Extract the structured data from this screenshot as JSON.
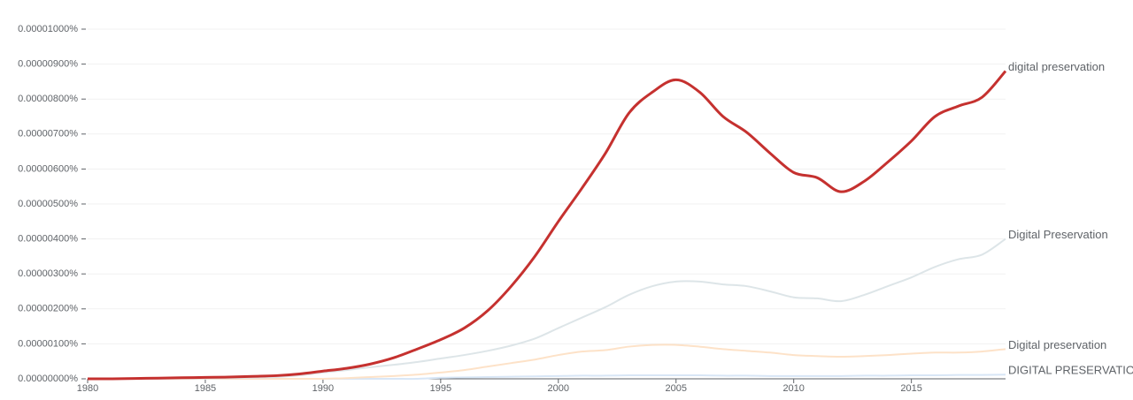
{
  "chart_data": {
    "type": "line",
    "x": [
      1980,
      1981,
      1982,
      1983,
      1984,
      1985,
      1986,
      1987,
      1988,
      1989,
      1990,
      1991,
      1992,
      1993,
      1994,
      1995,
      1996,
      1997,
      1998,
      1999,
      2000,
      2001,
      2002,
      2003,
      2004,
      2005,
      2006,
      2007,
      2008,
      2009,
      2010,
      2011,
      2012,
      2013,
      2014,
      2015,
      2016,
      2017,
      2018,
      2019
    ],
    "xlim": [
      1980,
      2019
    ],
    "xticks": [
      1980,
      1985,
      1990,
      1995,
      2000,
      2005,
      2010,
      2015
    ],
    "ylim": [
      0,
      1e-05
    ],
    "yticks": [
      {
        "value": 0,
        "label": "0.00000000%"
      },
      {
        "value": 1e-06,
        "label": "0.00000100%"
      },
      {
        "value": 2e-06,
        "label": "0.00000200%"
      },
      {
        "value": 3e-06,
        "label": "0.00000300%"
      },
      {
        "value": 4e-06,
        "label": "0.00000400%"
      },
      {
        "value": 5e-06,
        "label": "0.00000500%"
      },
      {
        "value": 6e-06,
        "label": "0.00000600%"
      },
      {
        "value": 7e-06,
        "label": "0.00000700%"
      },
      {
        "value": 8e-06,
        "label": "0.00000800%"
      },
      {
        "value": 9e-06,
        "label": "0.00000900%"
      },
      {
        "value": 1e-05,
        "label": "0.00001000%"
      }
    ],
    "grid": true,
    "series": [
      {
        "name": "digital preservation",
        "color": "#c5312f",
        "values": [
          0,
          0,
          1e-08,
          2e-08,
          3e-08,
          4e-08,
          5e-08,
          7e-08,
          9e-08,
          1.4e-07,
          2.2e-07,
          3e-07,
          4.2e-07,
          6e-07,
          8.5e-07,
          1.12e-06,
          1.45e-06,
          1.95e-06,
          2.65e-06,
          3.5e-06,
          4.5e-06,
          5.45e-06,
          6.45e-06,
          7.6e-06,
          8.2e-06,
          8.55e-06,
          8.2e-06,
          7.5e-06,
          7.05e-06,
          6.45e-06,
          5.9e-06,
          5.75e-06,
          5.35e-06,
          5.65e-06,
          6.2e-06,
          6.8e-06,
          7.5e-06,
          7.8e-06,
          8.05e-06,
          8.8e-06
        ]
      },
      {
        "name": "Digital Preservation",
        "color": "#dde5e8",
        "values": [
          0,
          0,
          0,
          0,
          1e-08,
          1e-08,
          2e-08,
          3e-08,
          5e-08,
          1e-07,
          1.8e-07,
          2.5e-07,
          3.3e-07,
          4e-07,
          4.8e-07,
          5.8e-07,
          6.8e-07,
          8e-07,
          9.5e-07,
          1.15e-06,
          1.45e-06,
          1.75e-06,
          2.05e-06,
          2.4e-06,
          2.65e-06,
          2.78e-06,
          2.78e-06,
          2.7e-06,
          2.65e-06,
          2.5e-06,
          2.33e-06,
          2.3e-06,
          2.22e-06,
          2.4e-06,
          2.65e-06,
          2.9e-06,
          3.2e-06,
          3.42e-06,
          3.55e-06,
          4e-06
        ]
      },
      {
        "name": "Digital preservation",
        "color": "#fde2c8",
        "values": [
          0,
          0,
          0,
          0,
          0,
          0,
          0,
          0,
          0,
          0,
          0,
          2e-08,
          5e-08,
          8e-08,
          1.2e-07,
          1.8e-07,
          2.5e-07,
          3.5e-07,
          4.5e-07,
          5.5e-07,
          6.8e-07,
          7.8e-07,
          8.2e-07,
          9.2e-07,
          9.7e-07,
          9.7e-07,
          9.2e-07,
          8.5e-07,
          8e-07,
          7.5e-07,
          6.8e-07,
          6.5e-07,
          6.3e-07,
          6.5e-07,
          6.8e-07,
          7.2e-07,
          7.5e-07,
          7.5e-07,
          7.8e-07,
          8.5e-07
        ]
      },
      {
        "name": "DIGITAL PRESERVATION",
        "color": "#d8e6f6",
        "values": [
          0,
          0,
          0,
          0,
          0,
          0,
          0,
          0,
          0,
          0,
          0,
          0,
          0,
          0,
          0,
          3e-08,
          4e-08,
          5e-08,
          6e-08,
          7e-08,
          8e-08,
          9e-08,
          9e-08,
          1e-07,
          1e-07,
          1e-07,
          1e-07,
          9e-08,
          9e-08,
          8e-08,
          8e-08,
          8e-08,
          8e-08,
          9e-08,
          9e-08,
          1e-07,
          1e-07,
          1.1e-07,
          1.1e-07,
          1.2e-07
        ]
      }
    ]
  }
}
